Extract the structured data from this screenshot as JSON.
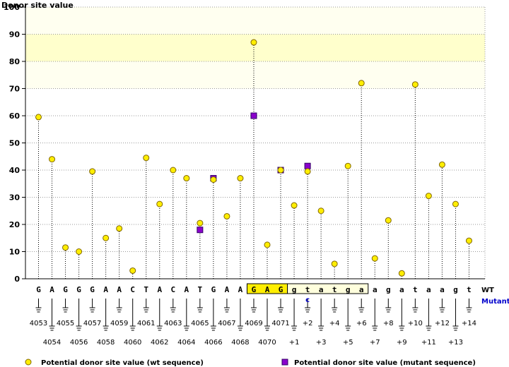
{
  "chart_data": {
    "type": "scatter",
    "title": "",
    "ylabel": "Donor site value",
    "xlabel": "",
    "ylim": [
      0,
      100
    ],
    "yticks": [
      0,
      10,
      20,
      30,
      40,
      50,
      60,
      70,
      80,
      90,
      100
    ],
    "grid": true,
    "bases": [
      "G",
      "A",
      "G",
      "G",
      "G",
      "A",
      "A",
      "C",
      "T",
      "A",
      "C",
      "A",
      "T",
      "G",
      "A",
      "A",
      "G",
      "A",
      "G",
      "g",
      "t",
      "a",
      "t",
      "g",
      "a",
      "a",
      "g",
      "a",
      "t",
      "a",
      "a",
      "g",
      "t"
    ],
    "positions": [
      "4053",
      "4054",
      "4055",
      "4056",
      "4057",
      "4058",
      "4059",
      "4060",
      "4061",
      "4062",
      "4063",
      "4064",
      "4065",
      "4066",
      "4067",
      "4068",
      "4069",
      "4070",
      "4071",
      "+1",
      "+2",
      "+3",
      "+4",
      "+5",
      "+6",
      "+7",
      "+8",
      "+9",
      "+10",
      "+11",
      "+12",
      "+13",
      "+14"
    ],
    "mutant_base": {
      "index": 20,
      "label": "c"
    },
    "highlight_exon_range": [
      16,
      18
    ],
    "highlight_intron_range": [
      19,
      24
    ],
    "series": [
      {
        "name": "Potential donor site value (wt sequence)",
        "color": "#ffee00",
        "marker": "circle",
        "values": [
          59.5,
          44,
          11.5,
          10,
          39.5,
          15,
          18.5,
          3,
          44.5,
          27.5,
          40,
          37,
          20.5,
          36.5,
          23,
          37,
          87,
          12.5,
          40,
          27,
          39.5,
          25,
          5.5,
          41.5,
          72,
          7.5,
          21.5,
          2,
          71.5,
          30.5,
          42,
          27.5,
          14
        ]
      },
      {
        "name": "Potential donor site value (mutant sequence)",
        "color": "#8a00cc",
        "marker": "square",
        "points": [
          {
            "i": 12,
            "y": 18
          },
          {
            "i": 13,
            "y": 37
          },
          {
            "i": 16,
            "y": 60
          },
          {
            "i": 18,
            "y": 40
          },
          {
            "i": 20,
            "y": 41.5
          }
        ]
      }
    ],
    "bands": [
      {
        "from": 80,
        "to": 90,
        "color": "#ffffcc"
      },
      {
        "from": 90,
        "to": 100,
        "color": "#fffff0"
      },
      {
        "from": 70,
        "to": 80,
        "color": "#fffff0"
      }
    ],
    "row_labels": {
      "wt": "WT",
      "mutant": "Mutant"
    },
    "legend": {
      "wt_label": "Potential donor site value (wt sequence)",
      "mutant_label": "Potential donor site value (mutant sequence)"
    }
  }
}
